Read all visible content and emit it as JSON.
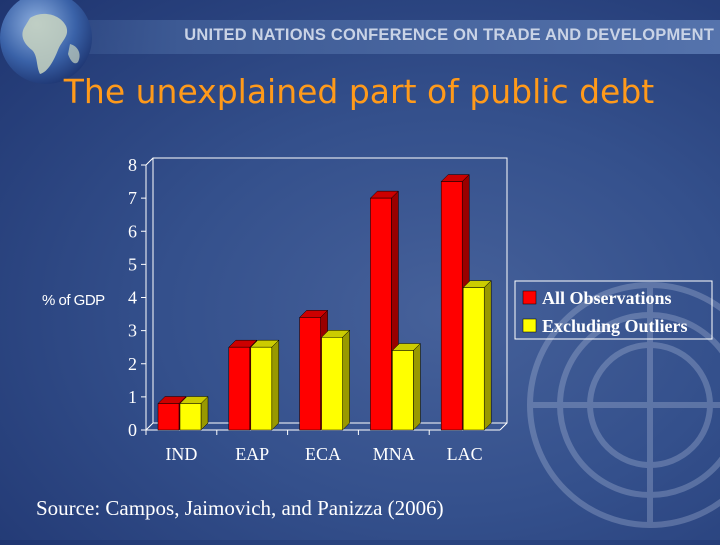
{
  "header": {
    "organization": "UNITED NATIONS CONFERENCE ON TRADE AND DEVELOPMENT"
  },
  "slide": {
    "title": "The unexplained part of public debt",
    "source": "Source: Campos, Jaimovich, and Panizza (2006)"
  },
  "colors": {
    "series_1": "#ff0000",
    "series_2": "#ffff00",
    "title": "#ff9a1a",
    "background": "#34508c"
  },
  "chart_data": {
    "type": "bar",
    "title": "",
    "xlabel": "",
    "ylabel": "% of GDP",
    "ylim": [
      0,
      8
    ],
    "yticks": [
      0,
      1,
      2,
      3,
      4,
      5,
      6,
      7,
      8
    ],
    "categories": [
      "IND",
      "EAP",
      "ECA",
      "MNA",
      "LAC"
    ],
    "series": [
      {
        "name": "All Observations",
        "values": [
          0.8,
          2.5,
          3.4,
          7.0,
          7.5
        ],
        "color": "#ff0000"
      },
      {
        "name": "Excluding Outliers",
        "values": [
          0.8,
          2.5,
          2.8,
          2.4,
          4.3
        ],
        "color": "#ffff00"
      }
    ],
    "grid": false,
    "legend": "right",
    "style": "3d"
  }
}
